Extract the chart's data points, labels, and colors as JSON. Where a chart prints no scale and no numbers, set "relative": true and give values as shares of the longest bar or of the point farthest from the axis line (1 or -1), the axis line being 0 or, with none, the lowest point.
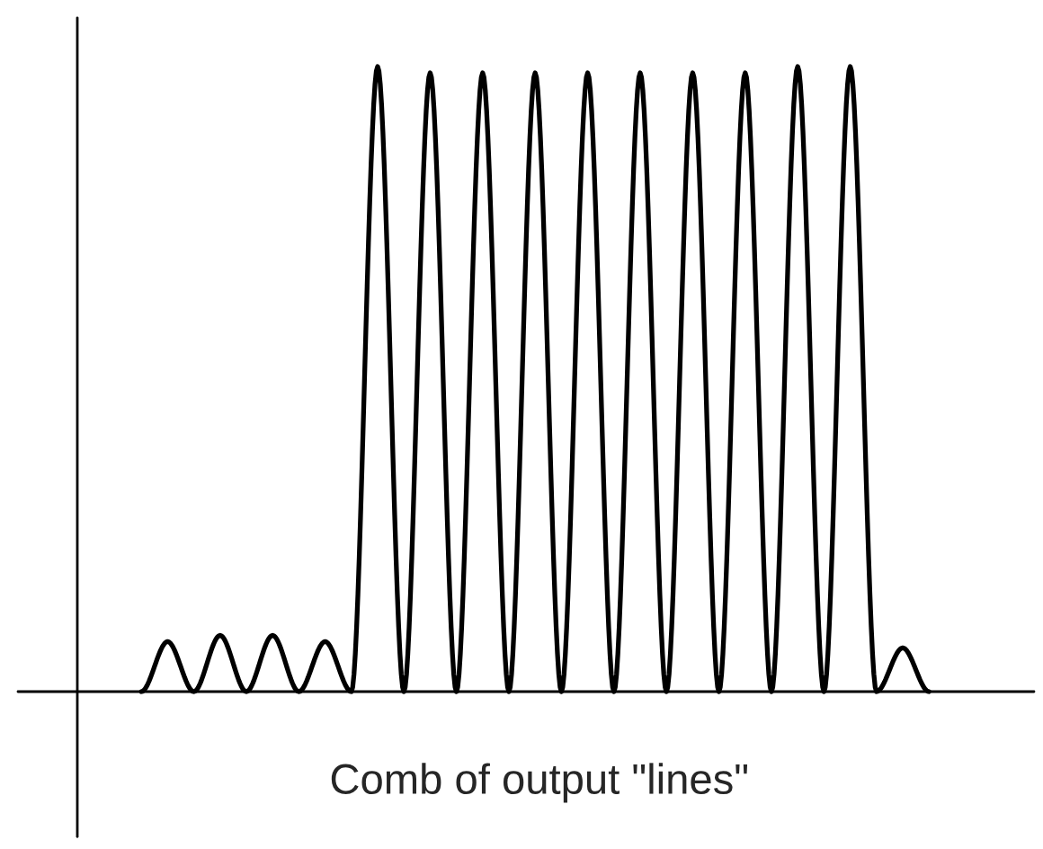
{
  "chart_data": {
    "type": "line",
    "relative": true,
    "xlabel": "Comb of output \"lines\"",
    "categories": [
      null,
      null,
      null,
      null,
      null,
      null,
      null,
      null,
      null,
      null,
      null,
      null,
      null,
      null,
      null,
      null,
      null,
      null,
      null,
      null,
      null,
      null,
      null,
      null,
      null,
      null,
      null,
      null,
      null,
      null,
      null
    ],
    "series": [
      {
        "color": "#000000",
        "values": [
          0,
          0.08,
          0,
          0.09,
          0,
          0.09,
          0,
          0.08,
          0,
          1.0,
          0,
          0.99,
          0,
          0.99,
          0,
          0.99,
          0,
          0.99,
          0,
          0.99,
          0,
          0.99,
          0,
          0.99,
          0,
          1.0,
          0,
          1.0,
          0,
          0.07,
          0
        ]
      }
    ],
    "marker": "none",
    "line_style": "solid",
    "legend": false
  }
}
